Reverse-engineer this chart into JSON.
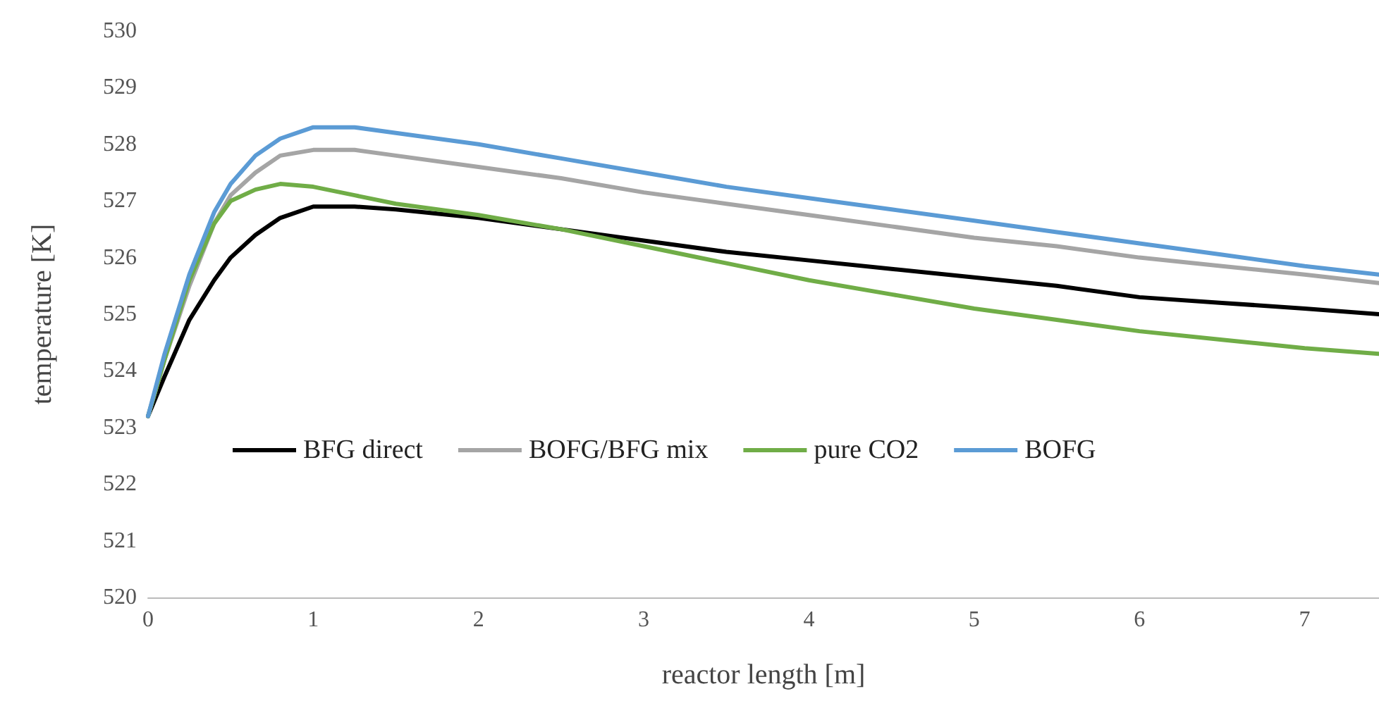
{
  "chart_data": {
    "type": "line",
    "xlabel": "reactor length [m]",
    "ylabel": "temperature [K]",
    "xlim": [
      0,
      7.45
    ],
    "xticks": [
      0,
      1,
      2,
      3,
      4,
      5,
      6,
      7
    ],
    "ylim": [
      520,
      530
    ],
    "yticks": [
      520,
      521,
      522,
      523,
      524,
      525,
      526,
      527,
      528,
      529,
      530
    ],
    "grid": false,
    "legend": "bottom left",
    "marker": "none",
    "line_style": "solid",
    "x": [
      0,
      0.1,
      0.25,
      0.4,
      0.5,
      0.65,
      0.8,
      1,
      1.25,
      1.5,
      2,
      2.5,
      3,
      3.5,
      4,
      4.5,
      5,
      5.5,
      6,
      6.5,
      7,
      7.45
    ],
    "series": [
      {
        "name": "BFG direct",
        "color": "#000000",
        "values": [
          523.2,
          523.9,
          524.9,
          525.6,
          526.0,
          526.4,
          526.7,
          526.9,
          526.9,
          526.85,
          526.7,
          526.5,
          526.3,
          526.1,
          525.95,
          525.8,
          525.65,
          525.5,
          525.3,
          525.2,
          525.1,
          525.0
        ]
      },
      {
        "name": "BOFG/BFG mix",
        "color": "#a5a5a5",
        "values": [
          523.2,
          524.2,
          525.5,
          526.6,
          527.1,
          527.5,
          527.8,
          527.9,
          527.9,
          527.8,
          527.6,
          527.4,
          527.15,
          526.95,
          526.75,
          526.55,
          526.35,
          526.2,
          526.0,
          525.85,
          525.7,
          525.55
        ]
      },
      {
        "name": "pure CO2",
        "color": "#70ad47",
        "values": [
          523.2,
          524.2,
          525.6,
          526.6,
          527.0,
          527.2,
          527.3,
          527.25,
          527.1,
          526.95,
          526.75,
          526.5,
          526.2,
          525.9,
          525.6,
          525.35,
          525.1,
          524.9,
          524.7,
          524.55,
          524.4,
          524.3
        ]
      },
      {
        "name": "BOFG",
        "color": "#5b9bd5",
        "values": [
          523.2,
          524.3,
          525.7,
          526.8,
          527.3,
          527.8,
          528.1,
          528.3,
          528.3,
          528.2,
          528.0,
          527.75,
          527.5,
          527.25,
          527.05,
          526.85,
          526.65,
          526.45,
          526.25,
          526.05,
          525.85,
          525.7
        ]
      }
    ]
  }
}
